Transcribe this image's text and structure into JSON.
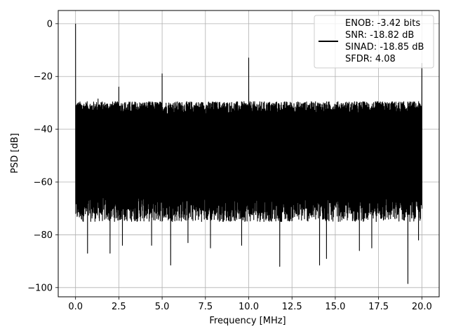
{
  "chart_data": {
    "type": "line",
    "xlabel": "Frequency [MHz]",
    "ylabel": "PSD [dB]",
    "xlim": [
      -1.0,
      21.0
    ],
    "ylim": [
      -103.5,
      5.0
    ],
    "xticks": [
      0.0,
      2.5,
      5.0,
      7.5,
      10.0,
      12.5,
      15.0,
      17.5,
      20.0
    ],
    "xtick_labels": [
      "0.0",
      "2.5",
      "5.0",
      "7.5",
      "10.0",
      "12.5",
      "15.0",
      "17.5",
      "20.0"
    ],
    "yticks": [
      0,
      -20,
      -40,
      -60,
      -80,
      -100
    ],
    "ytick_labels": [
      "0",
      "−20",
      "−40",
      "−60",
      "−80",
      "−100"
    ],
    "grid": true,
    "legend_position": "top-right",
    "series": [
      {
        "color": "#000000",
        "noise_floor_band_db": [
          -72,
          -32
        ],
        "spurs": [
          {
            "x": 0.0,
            "y": 0.0
          },
          {
            "x": 1.3,
            "y": -28.5
          },
          {
            "x": 2.5,
            "y": -24.0
          },
          {
            "x": 5.0,
            "y": -19.0
          },
          {
            "x": 10.0,
            "y": -13.0
          },
          {
            "x": 20.0,
            "y": -15.0
          }
        ],
        "dips": [
          {
            "x": 0.7,
            "y": -87
          },
          {
            "x": 2.0,
            "y": -87
          },
          {
            "x": 2.7,
            "y": -84
          },
          {
            "x": 4.4,
            "y": -84
          },
          {
            "x": 5.5,
            "y": -91.5
          },
          {
            "x": 6.5,
            "y": -83
          },
          {
            "x": 7.8,
            "y": -85
          },
          {
            "x": 9.6,
            "y": -84
          },
          {
            "x": 11.8,
            "y": -92
          },
          {
            "x": 14.1,
            "y": -91.5
          },
          {
            "x": 14.5,
            "y": -89
          },
          {
            "x": 16.4,
            "y": -86
          },
          {
            "x": 17.1,
            "y": -85
          },
          {
            "x": 19.2,
            "y": -98.5
          },
          {
            "x": 19.8,
            "y": -82
          }
        ]
      }
    ],
    "legend": [
      "ENOB: -3.42 bits",
      "SNR: -18.82 dB",
      "SINAD: -18.85 dB",
      "SFDR: 4.08"
    ]
  }
}
